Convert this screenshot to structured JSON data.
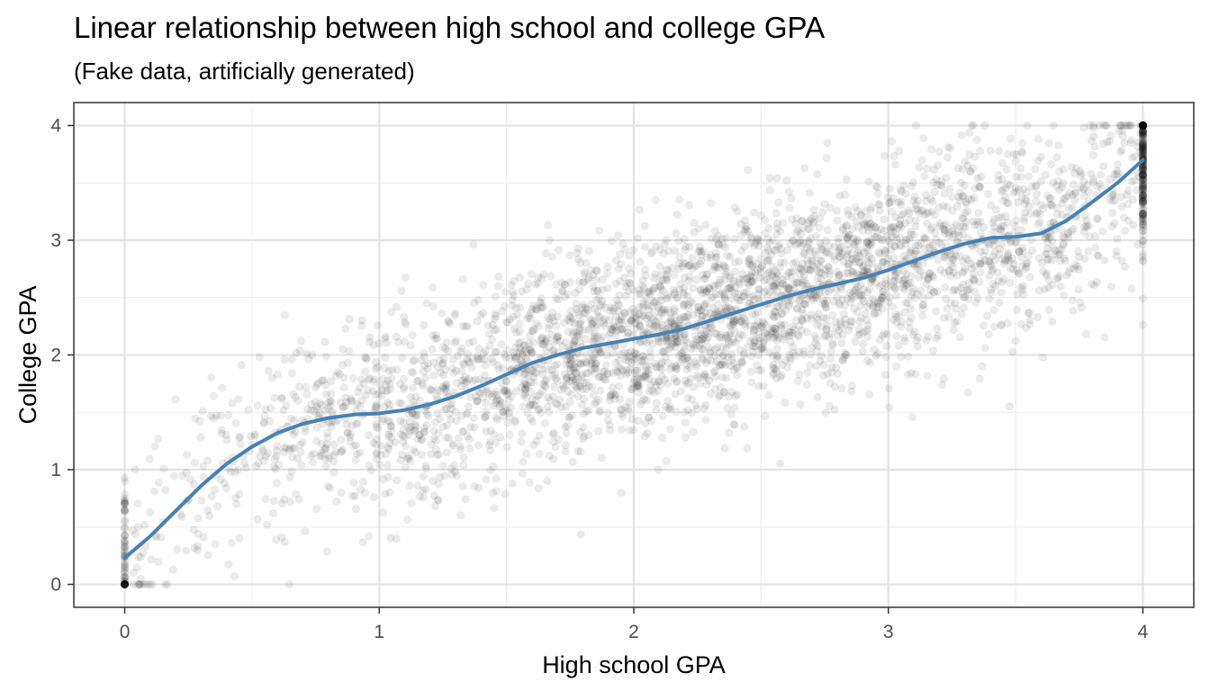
{
  "chart_data": {
    "type": "scatter",
    "title": "Linear relationship between high school and college GPA",
    "subtitle": "(Fake data, artificially generated)",
    "xlabel": "High school GPA",
    "ylabel": "College GPA",
    "xlim": [
      -0.2,
      4.2
    ],
    "ylim": [
      -0.2,
      4.2
    ],
    "x_ticks": [
      0,
      1,
      2,
      3,
      4
    ],
    "x_tick_labels": [
      "0",
      "1",
      "2",
      "3",
      "4"
    ],
    "y_ticks": [
      0,
      1,
      2,
      3,
      4
    ],
    "y_tick_labels": [
      "0",
      "1",
      "2",
      "3",
      "4"
    ],
    "grid": true,
    "points_description_count": 4000,
    "point_color": "#000000",
    "point_opacity": 0.08,
    "smooth_line": {
      "color": "#4682b4",
      "x": [
        0,
        0.1,
        0.2,
        0.3,
        0.4,
        0.5,
        0.6,
        0.7,
        0.8,
        0.9,
        1.0,
        1.1,
        1.2,
        1.3,
        1.4,
        1.5,
        1.6,
        1.7,
        1.8,
        1.9,
        2.0,
        2.1,
        2.2,
        2.3,
        2.4,
        2.5,
        2.6,
        2.7,
        2.8,
        2.9,
        3.0,
        3.1,
        3.2,
        3.3,
        3.4,
        3.5,
        3.6,
        3.7,
        3.8,
        3.9,
        4.0
      ],
      "y": [
        0.23,
        0.42,
        0.64,
        0.86,
        1.05,
        1.2,
        1.32,
        1.4,
        1.45,
        1.48,
        1.49,
        1.52,
        1.57,
        1.64,
        1.73,
        1.83,
        1.93,
        2.0,
        2.06,
        2.1,
        2.14,
        2.18,
        2.23,
        2.3,
        2.37,
        2.44,
        2.51,
        2.57,
        2.62,
        2.67,
        2.74,
        2.82,
        2.9,
        2.97,
        3.02,
        3.03,
        3.06,
        3.17,
        3.33,
        3.5,
        3.7
      ]
    }
  }
}
